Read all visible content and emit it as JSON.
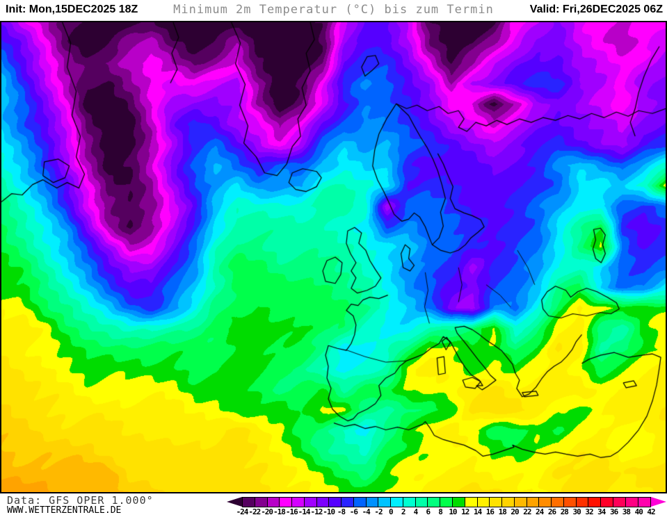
{
  "header": {
    "init_label": "Init: Mon,15DEC2025 18Z",
    "title": "Minimum 2m Temperatur (°C) bis zum Termin",
    "valid_label": "Valid: Fri,26DEC2025 06Z"
  },
  "footer": {
    "data_label": "Data: GFS OPER 1.000°",
    "site_label": "WWW.WETTERZENTRALE.DE"
  },
  "colorbar": {
    "ticks": [
      -24,
      -22,
      -20,
      -18,
      -16,
      -14,
      -12,
      -10,
      -8,
      -6,
      -4,
      -2,
      0,
      2,
      4,
      6,
      8,
      10,
      12,
      14,
      16,
      18,
      20,
      22,
      24,
      26,
      28,
      30,
      32,
      34,
      36,
      38,
      40,
      42
    ],
    "colors": [
      "#2d0032",
      "#55005f",
      "#83008f",
      "#b800c8",
      "#ff00ff",
      "#d400ff",
      "#a000ff",
      "#7c00ff",
      "#5500ff",
      "#2923ff",
      "#0064ff",
      "#0091ff",
      "#00c3ff",
      "#00efff",
      "#00ffd0",
      "#00ffa8",
      "#00ff7e",
      "#00ff4b",
      "#00dc00",
      "#ffff00",
      "#fff000",
      "#ffe200",
      "#ffd300",
      "#ffb900",
      "#ffa300",
      "#ff8c00",
      "#ff6e00",
      "#ff5000",
      "#ff3100",
      "#ff1100",
      "#ff0028",
      "#ff0058",
      "#ff0083",
      "#ff00ad",
      "#ff00d7"
    ],
    "value_step": 2,
    "units": "°C"
  },
  "chart_data": {
    "type": "heatmap",
    "title": "Minimum 2m Temperatur (°C) bis zum Termin",
    "units": "°C",
    "value_range": [
      -26,
      23
    ],
    "legend_position": "bottom",
    "grid": {
      "cols": 32,
      "rows": 24,
      "values": [
        [
          -11,
          -15,
          -19,
          -23,
          -25,
          -26,
          -25,
          -23,
          -26,
          -26,
          -26,
          -26,
          -26,
          -26,
          -26,
          -24,
          -15,
          -9,
          -9,
          -15,
          -24,
          -26,
          -26,
          -24,
          -17,
          -15,
          -11,
          -15,
          -17,
          -19,
          -17,
          -17
        ],
        [
          -7,
          -11,
          -17,
          -23,
          -26,
          -24,
          -21,
          -19,
          -23,
          -25,
          -24,
          -20,
          -26,
          -26,
          -26,
          -24,
          -13,
          -9,
          -9,
          -13,
          -22,
          -26,
          -24,
          -20,
          -15,
          -11,
          -11,
          -15,
          -17,
          -19,
          -17,
          -15
        ],
        [
          -3,
          -9,
          -15,
          -21,
          -23,
          -21,
          -18,
          -17,
          -20,
          -23,
          -20,
          -17,
          -24,
          -26,
          -26,
          -22,
          -9,
          -7,
          -7,
          -11,
          -17,
          -24,
          -20,
          -15,
          -11,
          -9,
          -9,
          -13,
          -15,
          -17,
          -15,
          -13
        ],
        [
          -1,
          -7,
          -13,
          -19,
          -24,
          -25,
          -21,
          -17,
          -15,
          -17,
          -15,
          -13,
          -20,
          -26,
          -24,
          -17,
          -7,
          -3,
          -5,
          -9,
          -13,
          -20,
          -13,
          -11,
          -9,
          -7,
          -7,
          -11,
          -13,
          -17,
          -13,
          -11
        ],
        [
          -1,
          -5,
          -11,
          -17,
          -25,
          -26,
          -24,
          -18,
          -13,
          -11,
          -11,
          -13,
          -21,
          -26,
          -22,
          -15,
          -9,
          -5,
          -5,
          -7,
          -11,
          -17,
          -19,
          -25,
          -19,
          -13,
          -11,
          -13,
          -15,
          -17,
          -13,
          -11
        ],
        [
          -1,
          -5,
          -9,
          -15,
          -23,
          -26,
          -25,
          -19,
          -11,
          -7,
          -9,
          -13,
          -15,
          -21,
          -17,
          -9,
          -5,
          -3,
          -5,
          -7,
          -9,
          -13,
          -15,
          -19,
          -15,
          -11,
          -9,
          -11,
          -13,
          -15,
          -11,
          -9
        ],
        [
          1,
          -3,
          -7,
          -13,
          -21,
          -26,
          -25,
          -20,
          -13,
          -7,
          -5,
          -9,
          -13,
          -17,
          -13,
          -5,
          -1,
          -3,
          -1,
          -5,
          -7,
          -9,
          -11,
          -13,
          -11,
          -9,
          -7,
          -9,
          -11,
          -13,
          -9,
          -7
        ],
        [
          3,
          -1,
          -7,
          -13,
          -19,
          -25,
          -24,
          -19,
          -11,
          -5,
          -1,
          -5,
          -9,
          -5,
          -5,
          -1,
          1,
          -1,
          -1,
          -7,
          -9,
          -9,
          -9,
          -11,
          -9,
          -7,
          -3,
          -1,
          -3,
          -5,
          -1,
          3
        ],
        [
          5,
          1,
          -3,
          -9,
          -17,
          -23,
          -24,
          -20,
          -13,
          -7,
          -3,
          1,
          -3,
          -3,
          -3,
          3,
          5,
          3,
          1,
          -9,
          -7,
          -7,
          -9,
          -9,
          -9,
          -7,
          -5,
          1,
          1,
          -1,
          3,
          13
        ],
        [
          7,
          3,
          -1,
          -7,
          -15,
          -22,
          -24,
          -21,
          -15,
          -9,
          -1,
          3,
          3,
          3,
          3,
          5,
          5,
          3,
          -13,
          -5,
          -5,
          -7,
          -9,
          -9,
          -7,
          -5,
          -3,
          1,
          1,
          -5,
          -7,
          -5
        ],
        [
          9,
          5,
          1,
          -3,
          -11,
          -20,
          -24,
          -21,
          -15,
          -7,
          1,
          5,
          5,
          5,
          5,
          5,
          3,
          1,
          -7,
          -3,
          -5,
          -5,
          -7,
          -9,
          -7,
          -5,
          1,
          5,
          9,
          -7,
          -9,
          -7
        ],
        [
          9,
          7,
          3,
          -1,
          -7,
          -13,
          -19,
          -17,
          -11,
          -5,
          3,
          7,
          7,
          5,
          5,
          5,
          5,
          3,
          1,
          -1,
          -5,
          -5,
          -7,
          -9,
          -7,
          -5,
          1,
          7,
          13,
          -5,
          -9,
          -7
        ],
        [
          11,
          9,
          5,
          1,
          -3,
          -9,
          -13,
          -13,
          -7,
          -3,
          5,
          9,
          9,
          7,
          7,
          7,
          5,
          3,
          1,
          -3,
          -5,
          -7,
          -13,
          -7,
          -5,
          -3,
          1,
          3,
          1,
          -5,
          -7,
          -5
        ],
        [
          11,
          11,
          7,
          3,
          -1,
          -5,
          -9,
          -9,
          -5,
          -1,
          5,
          9,
          9,
          9,
          9,
          9,
          7,
          5,
          1,
          -3,
          -5,
          -9,
          -11,
          -7,
          -5,
          -1,
          7,
          9,
          -1,
          -5,
          -3,
          1
        ],
        [
          13,
          13,
          9,
          7,
          3,
          -1,
          -5,
          -7,
          -3,
          1,
          7,
          9,
          11,
          9,
          9,
          9,
          9,
          7,
          3,
          -1,
          -5,
          -11,
          -13,
          -3,
          -5,
          1,
          9,
          15,
          13,
          11,
          11,
          11
        ],
        [
          15,
          15,
          13,
          9,
          7,
          5,
          3,
          3,
          5,
          7,
          9,
          11,
          11,
          11,
          11,
          9,
          7,
          3,
          1,
          1,
          5,
          5,
          7,
          13,
          3,
          7,
          13,
          15,
          7,
          5,
          11,
          13
        ],
        [
          15,
          15,
          13,
          11,
          9,
          9,
          9,
          9,
          9,
          9,
          9,
          11,
          11,
          9,
          9,
          7,
          1,
          1,
          3,
          7,
          13,
          13,
          11,
          11,
          7,
          11,
          17,
          15,
          5,
          7,
          11,
          13
        ],
        [
          17,
          15,
          15,
          13,
          11,
          11,
          11,
          11,
          11,
          9,
          9,
          11,
          11,
          9,
          7,
          3,
          1,
          3,
          5,
          13,
          15,
          13,
          11,
          13,
          11,
          13,
          15,
          13,
          9,
          11,
          13,
          15
        ],
        [
          17,
          17,
          15,
          15,
          13,
          13,
          13,
          13,
          13,
          11,
          11,
          11,
          9,
          7,
          9,
          11,
          5,
          9,
          9,
          13,
          13,
          13,
          15,
          17,
          15,
          15,
          15,
          15,
          13,
          15,
          15,
          15
        ],
        [
          19,
          17,
          17,
          15,
          15,
          15,
          15,
          15,
          15,
          13,
          13,
          11,
          11,
          11,
          9,
          13,
          13,
          7,
          5,
          7,
          9,
          11,
          17,
          17,
          17,
          15,
          13,
          11,
          13,
          15,
          15,
          17
        ],
        [
          19,
          19,
          17,
          17,
          17,
          17,
          15,
          15,
          15,
          15,
          15,
          17,
          15,
          13,
          9,
          7,
          3,
          1,
          7,
          11,
          13,
          15,
          13,
          9,
          9,
          11,
          9,
          13,
          15,
          13,
          13,
          15
        ],
        [
          21,
          19,
          19,
          19,
          19,
          17,
          17,
          17,
          17,
          17,
          17,
          17,
          15,
          13,
          11,
          7,
          5,
          3,
          9,
          11,
          13,
          13,
          13,
          11,
          11,
          13,
          13,
          15,
          15,
          13,
          13,
          15
        ],
        [
          21,
          21,
          21,
          21,
          21,
          21,
          17,
          17,
          17,
          17,
          17,
          17,
          17,
          15,
          13,
          11,
          9,
          7,
          11,
          13,
          13,
          15,
          15,
          13,
          13,
          13,
          17,
          17,
          17,
          15,
          17,
          17
        ],
        [
          23,
          23,
          23,
          21,
          21,
          21,
          19,
          19,
          17,
          17,
          17,
          17,
          17,
          15,
          15,
          13,
          11,
          11,
          13,
          13,
          15,
          15,
          17,
          17,
          15,
          13,
          15,
          17,
          17,
          15,
          15,
          17
        ]
      ]
    }
  },
  "map": {
    "coastline_color": "#000000",
    "coastlines": [
      "M332,0 L345,30 L338,60 L352,90 L344,120 L356,150 L350,175 L368,195 L380,218 L398,222 L412,205 L420,180 L432,165 L428,140 L440,120 L434,95 L446,70 L440,45 L452,25 L446,0",
      "M415,232 L420,218 L435,212 L455,216 L462,225 L455,238 L440,245 L425,242 Z",
      "M520,65 L528,50 L540,48 L545,60 L535,70 L525,78 Z",
      "M570,118 L556,140 L545,162 L539,185 L536,208 L543,228 L552,245 L560,262 L567,278 L578,288 L588,285 L596,276 L604,282 L612,296 L618,312 L622,322 L632,312 L638,295 L634,275 L641,255 L636,235 L630,215 L623,198 L615,182 L605,166 L596,150 L588,135 Z",
      "M622,322 L634,330 L648,334 L660,330 L670,322 L678,312 L688,304 L697,296 L692,286 L680,280 L668,276 L655,270 L648,255 L652,238 L645,222 L638,205 L630,190",
      "M577,335 L583,322 L590,328 L588,342 L596,352 L590,360 L580,355 Z",
      "M500,302 L510,297 L520,305 L516,320 L526,330 L532,345 L540,358 L548,370 L540,382 L528,388 L514,392 L505,385 L512,370 L505,360 L512,348 L504,335 L498,320 Z",
      "M470,345 L482,340 L492,348 L490,365 L482,378 L468,375 L464,360 Z",
      "M558,395 L545,400 L532,398 L522,402 L515,410 L505,408 L498,417 L508,425 L512,438 L510,452 L505,465 L498,475 L485,472 L472,468 L468,482 L472,498 L470,515 L476,530 L472,545 L478,560 L488,570 L500,577 L508,574 L515,566 L528,560 L540,552 L548,540 L545,526 L555,515 L568,508 L575,498 L585,490 L598,485 L610,480 L620,472 L632,465 L638,455 L648,462 L655,475 L662,488 L670,500 L678,510 L690,518 L695,526 L686,526 L694,532 L702,527 L714,518 L706,511 L698,500 L688,488 L678,475 L668,462 L658,450 L655,442 L668,440 L680,445 L690,452 L700,460 L712,468 L722,475 L730,485 L738,495 L742,508 L748,518 L744,530 L752,542 L762,538 L772,528 L780,516 L788,506 L798,498 L808,492 L816,484 L824,474 L830,462 L838,452",
      "M666,518 L680,514 L692,520 L684,530 L670,528 Z",
      "M636,462 L643,456 L648,464 L642,474 Z",
      "M629,486 L639,484 L641,508 L631,510 Z",
      "M752,536 L772,534 L775,540 L755,542 Z",
      "M898,522 L913,519 L917,526 L902,529 Z",
      "M790,425 L782,415 L780,402 L788,390 L800,382 L815,388 L822,398 L832,390 L845,385 L860,390 L875,398 L888,406 L892,415 L880,422 L865,420 L845,425 L825,422 L808,428 Z",
      "M855,300 L865,298 L872,308 L868,322 L872,335 L866,348 L858,342 L854,328 L858,315 Z",
      "M480,580 L495,585 L510,582 L525,588 L540,585 L555,590 L572,586 L588,590 L600,585 L608,582 L612,578 L618,586 L625,598 L638,604 L652,608 L668,612 L685,620 L695,628 L710,625 L725,620 L740,615 L738,612 L752,618 L768,622 L785,625 L800,622 L815,625 L832,628 L850,625 L865,630 L880,628 L890,622 L905,608 L920,590 L932,570 L940,548 L946,525 L950,500 L952,485 L940,480 L925,482 L905,485 L885,478 L865,482 L848,488 L838,494",
      "M570,118 L585,125 L600,120 L615,128 L632,122 L645,132 L660,128 L668,140 L660,152 L672,158 L685,145 L700,150 L715,142 L730,148 L748,140 L765,145 L782,138 L800,142 L818,135 L835,140 L852,132 L870,138 L888,130 L905,136 L920,128 L940,132 L959,125",
      "M950,35 L938,55 L928,78 L920,102 L915,125 L908,145 L915,165",
      "M88,0 L100,30 L95,65 L108,100 L102,135 L114,165 L108,195 L120,220 L112,240 L95,232 L80,240 L60,228 L45,235 L30,250 L15,248 L0,260",
      "M62,202 L82,198 L98,208 L92,225 L75,232 L60,222 Z",
      "M248,0 L256,22 L246,45 L254,68 L244,88"
    ],
    "borders": [
      "M497,474 L525,484 L555,492 L585,490",
      "M612,362 L616,388 L611,412 L618,436",
      "M660,355 L665,380 L660,405",
      "M700,380 L720,395 L735,412",
      "M745,330 L760,355 L770,380"
    ]
  }
}
